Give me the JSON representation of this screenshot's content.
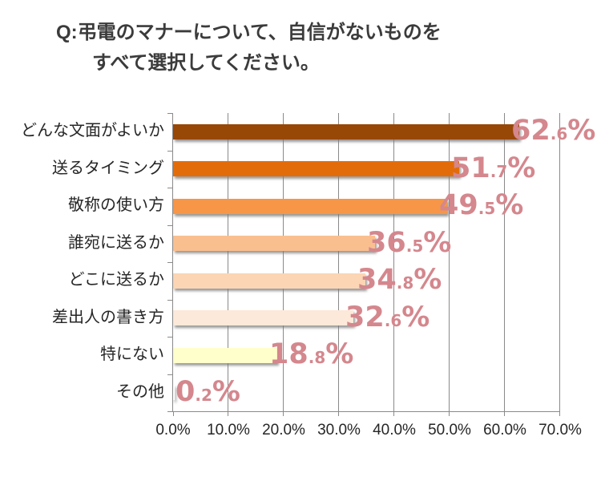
{
  "title": {
    "line1": "Q:弔電のマナーについて、自信がないものを",
    "line2": "すべて選択してください。"
  },
  "chart_data": {
    "type": "bar",
    "orientation": "horizontal",
    "title": "Q:弔電のマナーについて、自信がないものをすべて選択してください。",
    "categories": [
      "どんな文面がよいか",
      "送るタイミング",
      "敬称の使い方",
      "誰宛に送るか",
      "どこに送るか",
      "差出人の書き方",
      "特にない",
      "その他"
    ],
    "values": [
      62.6,
      51.7,
      49.5,
      36.5,
      34.8,
      32.6,
      18.8,
      0.2
    ],
    "value_labels": [
      "62.6%",
      "51.7%",
      "49.5%",
      "36.5%",
      "34.8%",
      "32.6%",
      "18.8%",
      "0.2%"
    ],
    "bar_colors": [
      "#974706",
      "#E36C0A",
      "#F79646",
      "#FABF8F",
      "#FCD5B4",
      "#FDE9D9",
      "#FFFFCC",
      "#FFFFFF"
    ],
    "xlabel": "",
    "ylabel": "",
    "xlim": [
      0,
      70
    ],
    "x_ticks": [
      "0.0%",
      "10.0%",
      "20.0%",
      "30.0%",
      "40.0%",
      "50.0%",
      "60.0%",
      "70.0%"
    ],
    "grid": true,
    "legend": "none",
    "value_label_color": "#D4878D",
    "axis_color": "#8a8a8a",
    "title_color": "#3b3b3b",
    "text_color": "#262626"
  }
}
